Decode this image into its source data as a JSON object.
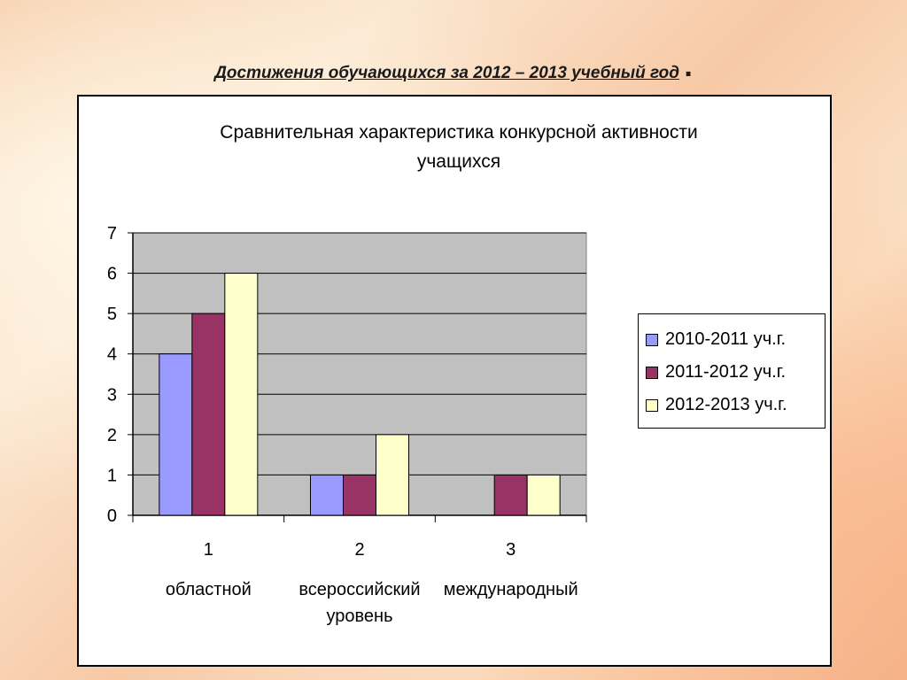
{
  "slide": {
    "title": "Достижения обучающихся за 2012 – 2013 учебный год",
    "title_dot": "."
  },
  "chart_data": {
    "type": "bar",
    "title_line1": "Сравнительная характеристика конкурсной активности",
    "title_line2": "учащихся",
    "categories": [
      "1",
      "2",
      "3"
    ],
    "category_labels": [
      "областной",
      "всероссийский уровень",
      "международный"
    ],
    "series": [
      {
        "name": "2010-2011 уч.г.",
        "color": "#9999ff",
        "values": [
          4,
          1,
          0
        ]
      },
      {
        "name": "2011-2012 уч.г.",
        "color": "#993366",
        "values": [
          5,
          1,
          1
        ]
      },
      {
        "name": "2012-2013 уч.г.",
        "color": "#ffffcc",
        "values": [
          6,
          2,
          1
        ]
      }
    ],
    "ylim": [
      0,
      7
    ],
    "yticks": [
      0,
      1,
      2,
      3,
      4,
      5,
      6,
      7
    ],
    "grid": true,
    "plot_background": "#c0c0c0",
    "legend_position": "right"
  }
}
